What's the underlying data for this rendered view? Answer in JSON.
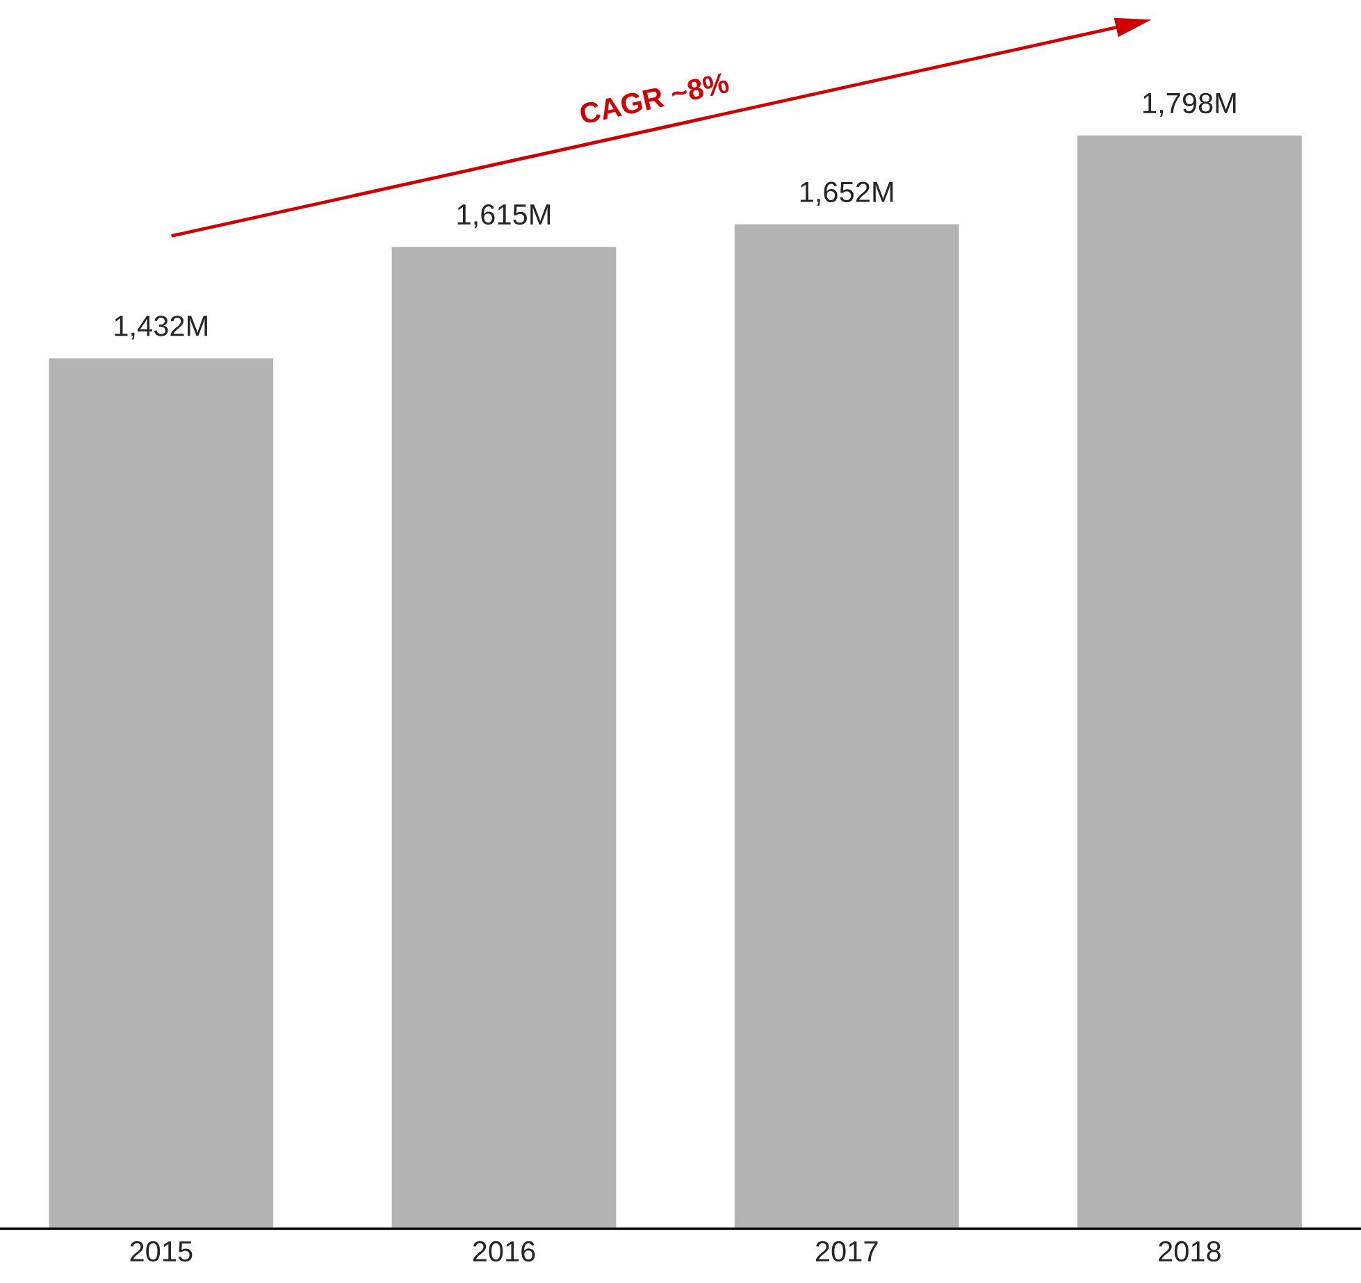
{
  "chart_data": {
    "type": "bar",
    "categories": [
      "2015",
      "2016",
      "2017",
      "2018"
    ],
    "values": [
      1432,
      1615,
      1652,
      1798
    ],
    "value_labels": [
      "1,432M",
      "1,615M",
      "1,652M",
      "1,798M"
    ],
    "color": "#b3b3b3",
    "annotations": [
      "CAGR ~8%"
    ],
    "tick_labels": "x"
  }
}
